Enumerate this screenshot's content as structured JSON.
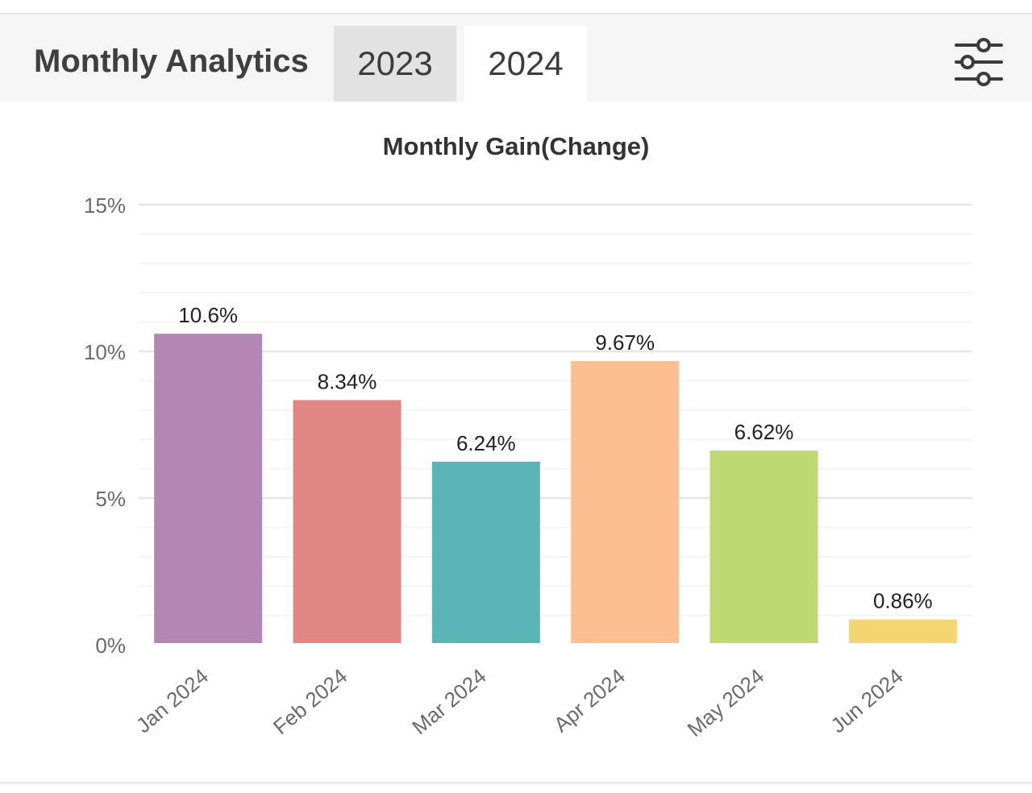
{
  "header": {
    "title": "Monthly Analytics",
    "tabs": [
      {
        "label": "2023",
        "active": false
      },
      {
        "label": "2024",
        "active": true
      }
    ],
    "filter_icon": "sliders-icon"
  },
  "chart_data": {
    "type": "bar",
    "title": "Monthly Gain(Change)",
    "xlabel": "",
    "ylabel": "",
    "categories": [
      "Jan 2024",
      "Feb 2024",
      "Mar 2024",
      "Apr 2024",
      "May 2024",
      "Jun 2024"
    ],
    "values": [
      10.6,
      8.34,
      6.24,
      9.67,
      6.62,
      0.86
    ],
    "data_labels": [
      "10.6%",
      "8.34%",
      "6.24%",
      "9.67%",
      "6.62%",
      "0.86%"
    ],
    "colors": [
      "#b386b3",
      "#e38785",
      "#5bb4b5",
      "#fcbf92",
      "#bfd972",
      "#f5d571"
    ],
    "ylim": [
      0,
      15
    ],
    "yticks": [
      {
        "value": 0,
        "label": "0%"
      },
      {
        "value": 5,
        "label": "5%"
      },
      {
        "value": 10,
        "label": "10%"
      },
      {
        "value": 15,
        "label": "15%"
      }
    ],
    "grid": true
  }
}
